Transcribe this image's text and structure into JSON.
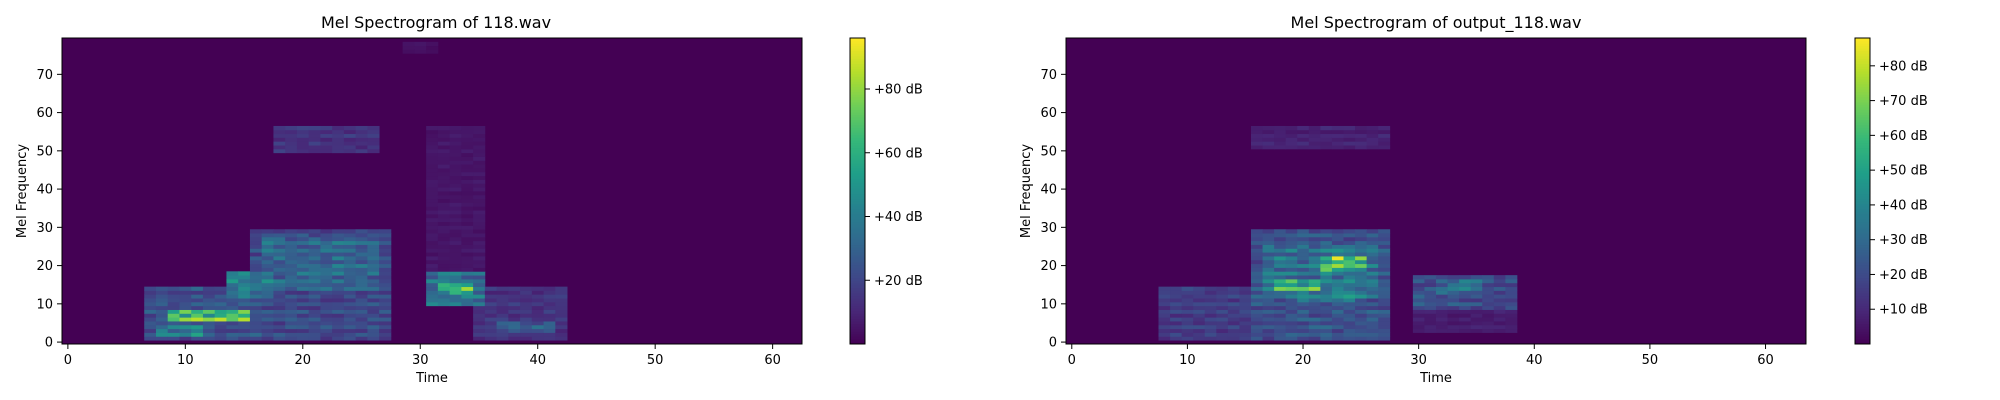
{
  "chart_data": [
    {
      "type": "heatmap",
      "title": "Mel Spectrogram of 118.wav",
      "xlabel": "Time",
      "ylabel": "Mel Frequency",
      "xlim": [
        -0.5,
        62.5
      ],
      "ylim": [
        -0.5,
        79.5
      ],
      "x_ticks": [
        0,
        10,
        20,
        30,
        40,
        50,
        60
      ],
      "y_ticks": [
        0,
        10,
        20,
        30,
        40,
        50,
        60,
        70
      ],
      "colormap": "viridis",
      "value_range": [
        0,
        96
      ],
      "colorbar_ticks": [
        20,
        40,
        60,
        80
      ],
      "colorbar_tick_labels": [
        "+20 dB",
        "+40 dB",
        "+60 dB",
        "+80 dB"
      ],
      "regions": [
        {
          "t": [
            7,
            16
          ],
          "f": [
            1,
            14
          ],
          "level": 34
        },
        {
          "t": [
            16,
            27
          ],
          "f": [
            1,
            29
          ],
          "level": 30
        },
        {
          "t": [
            17,
            26
          ],
          "f": [
            14,
            27
          ],
          "level": 44
        },
        {
          "t": [
            9,
            15
          ],
          "f": [
            6,
            8
          ],
          "level": 92
        },
        {
          "t": [
            8,
            11
          ],
          "f": [
            2,
            4
          ],
          "level": 58
        },
        {
          "t": [
            14,
            17
          ],
          "f": [
            12,
            18
          ],
          "level": 54
        },
        {
          "t": [
            18,
            26
          ],
          "f": [
            50,
            56
          ],
          "level": 20
        },
        {
          "t": [
            31,
            35
          ],
          "f": [
            10,
            18
          ],
          "level": 48
        },
        {
          "t": [
            32,
            34
          ],
          "f": [
            13,
            15
          ],
          "level": 88
        },
        {
          "t": [
            31,
            35
          ],
          "f": [
            18,
            56
          ],
          "level": 8
        },
        {
          "t": [
            35,
            42
          ],
          "f": [
            1,
            14
          ],
          "level": 20
        },
        {
          "t": [
            37,
            41
          ],
          "f": [
            3,
            5
          ],
          "level": 40
        },
        {
          "t": [
            29,
            31
          ],
          "f": [
            76,
            78
          ],
          "level": 6
        }
      ]
    },
    {
      "type": "heatmap",
      "title": "Mel Spectrogram of output_118.wav",
      "xlabel": "Time",
      "ylabel": "Mel Frequency",
      "xlim": [
        -0.5,
        63.5
      ],
      "ylim": [
        -0.5,
        79.5
      ],
      "x_ticks": [
        0,
        10,
        20,
        30,
        40,
        50,
        60
      ],
      "y_ticks": [
        0,
        10,
        20,
        30,
        40,
        50,
        60,
        70
      ],
      "colormap": "viridis",
      "value_range": [
        0,
        88
      ],
      "colorbar_ticks": [
        10,
        20,
        30,
        40,
        50,
        60,
        70,
        80
      ],
      "colorbar_tick_labels": [
        "+10 dB",
        "+20 dB",
        "+30 dB",
        "+40 dB",
        "+50 dB",
        "+60 dB",
        "+70 dB",
        "+80 dB"
      ],
      "regions": [
        {
          "t": [
            8,
            16
          ],
          "f": [
            1,
            14
          ],
          "level": 22
        },
        {
          "t": [
            16,
            27
          ],
          "f": [
            1,
            29
          ],
          "level": 32
        },
        {
          "t": [
            17,
            26
          ],
          "f": [
            12,
            25
          ],
          "level": 46
        },
        {
          "t": [
            18,
            21
          ],
          "f": [
            14,
            16
          ],
          "level": 80
        },
        {
          "t": [
            22,
            25
          ],
          "f": [
            19,
            22
          ],
          "level": 86
        },
        {
          "t": [
            20,
            24
          ],
          "f": [
            11,
            13
          ],
          "level": 58
        },
        {
          "t": [
            16,
            27
          ],
          "f": [
            51,
            56
          ],
          "level": 12
        },
        {
          "t": [
            30,
            38
          ],
          "f": [
            9,
            17
          ],
          "level": 30
        },
        {
          "t": [
            32,
            35
          ],
          "f": [
            13,
            16
          ],
          "level": 44
        },
        {
          "t": [
            30,
            38
          ],
          "f": [
            3,
            9
          ],
          "level": 10
        }
      ]
    }
  ]
}
